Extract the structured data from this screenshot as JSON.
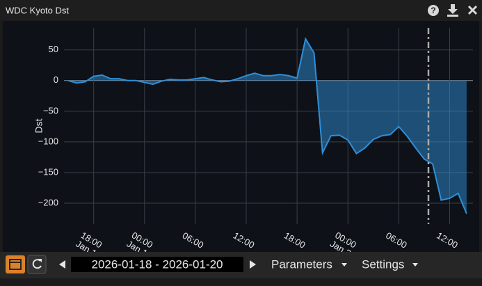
{
  "window": {
    "title": "WDC Kyoto Dst"
  },
  "chart_data": {
    "type": "area",
    "ylabel": "Dst",
    "x": [
      "2026-01-17T15:00",
      "2026-01-17T16:00",
      "2026-01-17T17:00",
      "2026-01-17T18:00",
      "2026-01-17T19:00",
      "2026-01-17T20:00",
      "2026-01-17T21:00",
      "2026-01-17T22:00",
      "2026-01-17T23:00",
      "2026-01-18T00:00",
      "2026-01-18T01:00",
      "2026-01-18T02:00",
      "2026-01-18T03:00",
      "2026-01-18T04:00",
      "2026-01-18T05:00",
      "2026-01-18T06:00",
      "2026-01-18T07:00",
      "2026-01-18T08:00",
      "2026-01-18T09:00",
      "2026-01-18T10:00",
      "2026-01-18T11:00",
      "2026-01-18T12:00",
      "2026-01-18T13:00",
      "2026-01-18T14:00",
      "2026-01-18T15:00",
      "2026-01-18T16:00",
      "2026-01-18T17:00",
      "2026-01-18T18:00",
      "2026-01-18T19:00",
      "2026-01-18T20:00",
      "2026-01-18T21:00",
      "2026-01-18T22:00",
      "2026-01-18T23:00",
      "2026-01-19T00:00",
      "2026-01-19T01:00",
      "2026-01-19T02:00",
      "2026-01-19T03:00",
      "2026-01-19T04:00",
      "2026-01-19T05:00",
      "2026-01-19T06:00",
      "2026-01-19T07:00",
      "2026-01-19T08:00",
      "2026-01-19T09:00",
      "2026-01-19T10:00",
      "2026-01-19T11:00",
      "2026-01-19T12:00",
      "2026-01-19T13:00",
      "2026-01-19T14:00"
    ],
    "series": [
      {
        "name": "Dst",
        "color": "#2e8fd8",
        "values": [
          0,
          -4,
          -2,
          7,
          9,
          3,
          3,
          0,
          0,
          -3,
          -6,
          -1,
          2,
          1,
          1,
          3,
          5,
          1,
          -2,
          -1,
          3,
          8,
          12,
          8,
          8,
          10,
          8,
          4,
          68,
          45,
          -118,
          -90,
          -89,
          -97,
          -119,
          -110,
          -96,
          -90,
          -88,
          -75,
          -91,
          -110,
          -128,
          -136,
          -195,
          -192,
          -184,
          -217
        ]
      }
    ],
    "xlim": [
      "2026-01-17T14:30",
      "2026-01-19T14:45"
    ],
    "xticks": [
      {
        "value": "2026-01-17T18:00",
        "label": "18:00\nJan 1"
      },
      {
        "value": "2026-01-18T00:00",
        "label": "00:00\nJan 1"
      },
      {
        "value": "2026-01-18T06:00",
        "label": "06:00"
      },
      {
        "value": "2026-01-18T12:00",
        "label": "12:00"
      },
      {
        "value": "2026-01-18T18:00",
        "label": "18:00"
      },
      {
        "value": "2026-01-19T00:00",
        "label": "00:00\nJan 2"
      },
      {
        "value": "2026-01-19T06:00",
        "label": "06:00"
      },
      {
        "value": "2026-01-19T12:00",
        "label": "12:00"
      }
    ],
    "ylim": [
      -234,
      86
    ],
    "yticks": [
      50,
      0,
      {
        "value": -50,
        "label": "−50"
      },
      {
        "value": -100,
        "label": "−100"
      },
      {
        "value": -150,
        "label": "−150"
      },
      {
        "value": -200,
        "label": "−200"
      }
    ],
    "grid": true
  },
  "toolbar": {
    "date_range": "2026-01-18 - 2026-01-20",
    "menus": [
      "Parameters",
      "Settings"
    ]
  }
}
